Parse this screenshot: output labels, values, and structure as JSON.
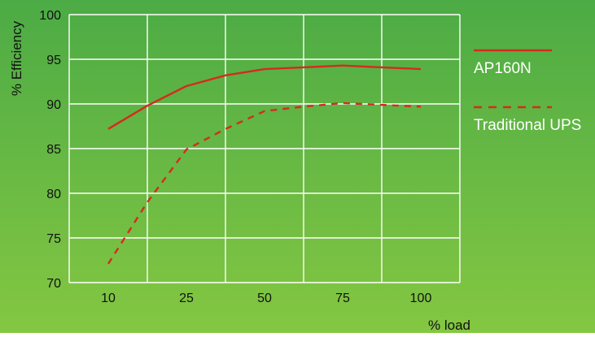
{
  "colors": {
    "background_top": "#4cab45",
    "background_bottom": "#84c742",
    "grid": "#ffffff",
    "series": "#d52b1e",
    "text_dark": "#111111",
    "text_light": "#ffffff"
  },
  "chart_data": {
    "type": "line",
    "title": "",
    "xlabel": "% load",
    "ylabel": "% Efficiency",
    "x_ticks": [
      "10",
      "25",
      "50",
      "75",
      "100"
    ],
    "y_ticks": [
      "100",
      "95",
      "90",
      "85",
      "80",
      "75",
      "70"
    ],
    "ylim": [
      70,
      100
    ],
    "grid": true,
    "legend_position": "right",
    "series": [
      {
        "name": "AP160N",
        "style": "solid",
        "x": [
          10,
          17.5,
          25,
          37.5,
          50,
          62.5,
          75,
          87.5,
          100
        ],
        "y": [
          87.2,
          89.8,
          92.0,
          93.2,
          93.9,
          94.1,
          94.3,
          94.1,
          93.9
        ]
      },
      {
        "name": "Traditional UPS",
        "style": "dashed",
        "x": [
          10,
          17.5,
          25,
          37.5,
          50,
          62.5,
          75,
          87.5,
          100
        ],
        "y": [
          72.1,
          79.0,
          84.9,
          87.2,
          89.2,
          89.7,
          90.1,
          89.9,
          89.7
        ]
      }
    ]
  }
}
